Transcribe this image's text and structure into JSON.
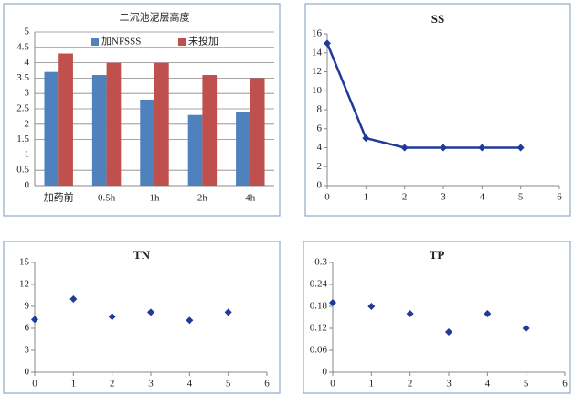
{
  "chart_data": [
    {
      "type": "bar",
      "title": "二沉池泥层高度",
      "categories": [
        "加药前",
        "0.5h",
        "1h",
        "2h",
        "4h"
      ],
      "series": [
        {
          "name": "加NFSSS",
          "color": "#4f81bd",
          "values": [
            3.7,
            3.6,
            2.8,
            2.3,
            2.4
          ]
        },
        {
          "name": "未投加",
          "color": "#c0504d",
          "values": [
            4.3,
            4.0,
            4.0,
            3.6,
            3.5
          ]
        }
      ],
      "ylim": [
        0,
        5
      ],
      "yticks": [
        0,
        0.5,
        1,
        1.5,
        2,
        2.5,
        3,
        3.5,
        4,
        4.5,
        5
      ],
      "grid": true,
      "legend": "top"
    },
    {
      "type": "line",
      "title": "SS",
      "x": [
        0,
        1,
        2,
        3,
        4,
        5
      ],
      "values": [
        15,
        5,
        4,
        4,
        4,
        4
      ],
      "color": "#1f3a9a",
      "xlim": [
        0,
        6
      ],
      "xticks": [
        0,
        1,
        2,
        3,
        4,
        5,
        6
      ],
      "ylim": [
        0,
        16
      ],
      "yticks": [
        0,
        2,
        4,
        6,
        8,
        10,
        12,
        14,
        16
      ],
      "grid": false
    },
    {
      "type": "scatter",
      "title": "TN",
      "x": [
        0,
        1,
        2,
        3,
        4,
        5
      ],
      "values": [
        7.2,
        10,
        7.6,
        8.2,
        7.1,
        8.2
      ],
      "color": "#1f3a9a",
      "xlim": [
        0,
        6
      ],
      "xticks": [
        0,
        1,
        2,
        3,
        4,
        5,
        6
      ],
      "ylim": [
        0,
        15
      ],
      "yticks": [
        0,
        3,
        6,
        9,
        12,
        15
      ],
      "grid": false
    },
    {
      "type": "scatter",
      "title": "TP",
      "x": [
        0,
        1,
        2,
        3,
        4,
        5
      ],
      "values": [
        0.19,
        0.18,
        0.16,
        0.11,
        0.16,
        0.12
      ],
      "color": "#1f3a9a",
      "xlim": [
        0,
        6
      ],
      "xticks": [
        0,
        1,
        2,
        3,
        4,
        5,
        6
      ],
      "ylim": [
        0,
        0.3
      ],
      "yticks": [
        0,
        0.06,
        0.12,
        0.18,
        0.24,
        0.3
      ],
      "grid": false
    }
  ]
}
